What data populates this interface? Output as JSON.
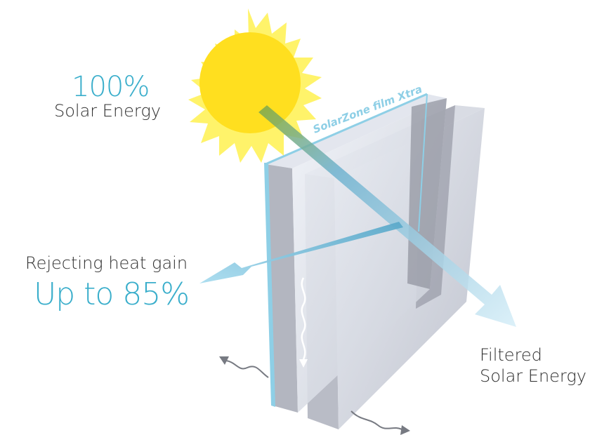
{
  "labels": {
    "solar_percent": "100%",
    "solar_energy": "Solar Energy",
    "film_name": "SolarZone film Xtra",
    "rejecting_text": "Rejecting heat gain",
    "rejecting_percent": "Up to 85%",
    "filtered_line1": "Filtered",
    "filtered_line2": "Solar Energy"
  },
  "colors": {
    "accent": "#3aaecb",
    "sun_core": "#ffdf1f",
    "sun_rays": "#fff36a",
    "text_dark": "#2f2f2f",
    "glass_edge": "#8ecfe6",
    "frame": "#a9acb6"
  }
}
